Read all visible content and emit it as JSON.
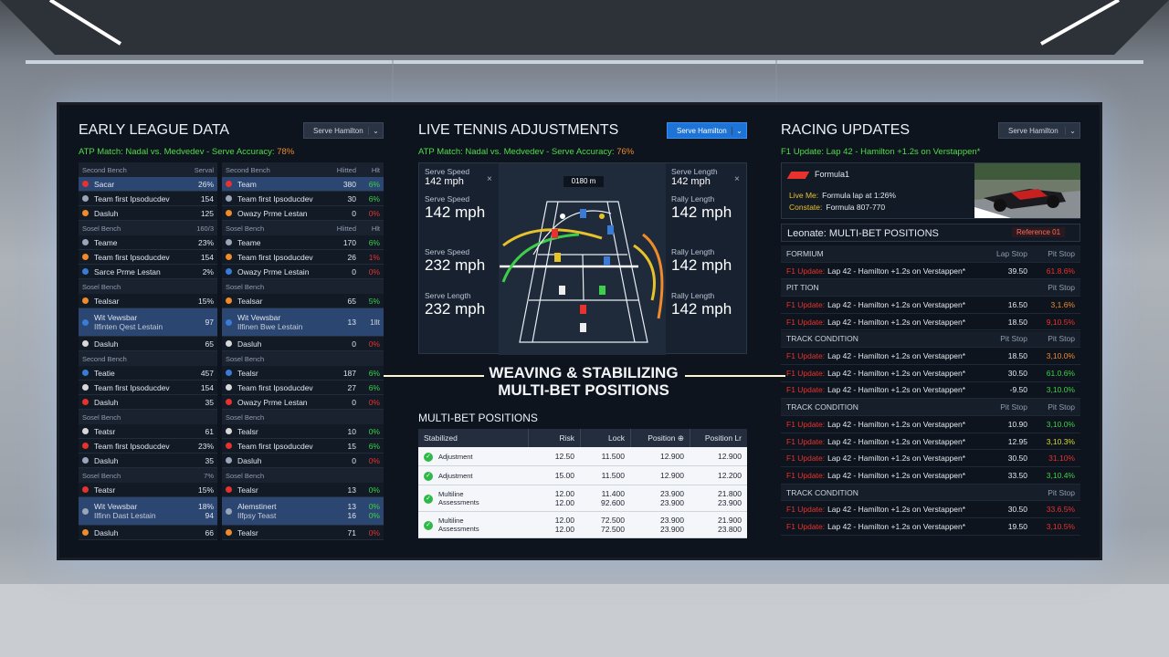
{
  "left": {
    "title": "EARLY LEAGUE DATA",
    "dropdown": "Serve Hamilton",
    "subtitle": "ATP Match: Nadal vs. Medvedev - Serve Accuracy: ",
    "subtitle_value": "78%",
    "columns": [
      {
        "groups": [
          {
            "name": "Second Bench",
            "v": "Serval",
            "rows": [
              {
                "name": "Sacar",
                "v": "26%",
                "hl": true
              },
              {
                "name": "Team first Ipsoducdev",
                "v": "154"
              },
              {
                "name": "Dasluh",
                "v": "125"
              }
            ]
          },
          {
            "name": "Sosel Bench",
            "v": "160/3",
            "rows": [
              {
                "name": "Teame",
                "v": "23%"
              },
              {
                "name": "Team first Ipsoducdev",
                "v": "154"
              },
              {
                "name": "Sarce Prme Lestan",
                "v": "2%"
              }
            ]
          },
          {
            "name": "Sosel Bench",
            "rows": [
              {
                "name": "Tealsar",
                "v": "15%"
              },
              {
                "name": "Wit Vewsbar",
                "name2": "Ilfinten Qest Lestain",
                "v": "97",
                "hl": true
              },
              {
                "name": "Dasluh",
                "v": "65"
              }
            ]
          },
          {
            "name": "Second Bench",
            "rows": [
              {
                "name": "Teatie",
                "v": "457"
              },
              {
                "name": "Team first Ipsoducdev",
                "v": "154"
              },
              {
                "name": "Dasluh",
                "v": "35"
              }
            ]
          },
          {
            "name": "Sosel Bench",
            "rows": [
              {
                "name": "Teatsr",
                "v": "61"
              },
              {
                "name": "Team first Ipsoducdev",
                "v": "23%"
              },
              {
                "name": "Dasluh",
                "v": "35"
              }
            ]
          },
          {
            "name": "Sosel Bench",
            "v": "7%",
            "rows": [
              {
                "name": "Teatsr",
                "v": "15%"
              },
              {
                "name": "Wit Vewsbar",
                "name2": "Ilfinn Dast Lestain",
                "v": "18%",
                "v2": "94",
                "hl": true
              },
              {
                "name": "Dasluh",
                "v": "66"
              }
            ]
          }
        ]
      },
      {
        "groups": [
          {
            "name": "Second Bench",
            "v": "Hlitted",
            "p": "Hlt",
            "rows": [
              {
                "name": "Team",
                "v": "380",
                "p": "6%",
                "pc": "#3ecf4a",
                "hl": true
              },
              {
                "name": "Team first Ipsoducdev",
                "v": "30",
                "p": "6%",
                "pc": "#3ecf4a"
              },
              {
                "name": "Owazy Prme Lestan",
                "v": "0",
                "p": "0%",
                "pc": "#e8322e"
              }
            ]
          },
          {
            "name": "Sosel Bench",
            "v": "Hlitted",
            "p": "Hlt",
            "rows": [
              {
                "name": "Teame",
                "v": "170",
                "p": "6%",
                "pc": "#3ecf4a"
              },
              {
                "name": "Team first Ipsoducdev",
                "v": "26",
                "p": "1%",
                "pc": "#e8322e"
              },
              {
                "name": "Owazy Prme Lestain",
                "v": "0",
                "p": "0%",
                "pc": "#e8322e"
              }
            ]
          },
          {
            "name": "Sosel Bench",
            "rows": [
              {
                "name": "Tealsar",
                "v": "65",
                "p": "5%",
                "pc": "#3ecf4a"
              },
              {
                "name": "Wit Vewsbar",
                "name2": "Ilfinen Bwe Lestain",
                "v": "13",
                "p": "1llt",
                "pc": "#c9d2df",
                "hl": true
              },
              {
                "name": "Dasluh",
                "v": "0",
                "p": "0%",
                "pc": "#e8322e"
              }
            ]
          },
          {
            "name": "Sosel Bench",
            "rows": [
              {
                "name": "Tealsr",
                "v": "187",
                "p": "6%",
                "pc": "#3ecf4a"
              },
              {
                "name": "Team first Ipsoducdev",
                "v": "27",
                "p": "6%",
                "pc": "#3ecf4a"
              },
              {
                "name": "Owazy Prme Lestan",
                "v": "0",
                "p": "0%",
                "pc": "#e8322e"
              }
            ]
          },
          {
            "name": "Sosel Bench",
            "rows": [
              {
                "name": "Tealsr",
                "v": "10",
                "p": "0%",
                "pc": "#3ecf4a"
              },
              {
                "name": "Team first Ipsoducdev",
                "v": "15",
                "p": "6%",
                "pc": "#3ecf4a"
              },
              {
                "name": "Dasluh",
                "v": "0",
                "p": "0%",
                "pc": "#e8322e"
              }
            ]
          },
          {
            "name": "Sosel Bench",
            "rows": [
              {
                "name": "Tealsr",
                "v": "13",
                "p": "0%",
                "pc": "#3ecf4a"
              },
              {
                "name": "Alemstinert",
                "name2": "Ilfpsy Teast",
                "v": "13",
                "p": "0%",
                "v2": "16",
                "p2": "0%",
                "pc": "#3ecf4a",
                "hl": true
              },
              {
                "name": "Tealsr",
                "v": "71",
                "p": "0%",
                "pc": "#e8322e"
              }
            ]
          }
        ]
      }
    ]
  },
  "middle": {
    "title": "LIVE TENNIS ADJUSTMENTS",
    "dropdown": "Serve Hamilton",
    "subtitle": "ATP Match: Nadal vs. Medvedev - Serve Accuracy: ",
    "subtitle_value": "76%",
    "court_label": "0180 m",
    "stats_left": [
      {
        "label": "Serve Speed",
        "value": "142 mph",
        "small": true
      },
      {
        "label": "Serve Speed",
        "value": "142 mph"
      },
      {
        "label": "Serve Speed",
        "value": "232 mph"
      },
      {
        "label": "Serve Length",
        "value": "232 mph"
      }
    ],
    "stats_right": [
      {
        "label": "Serve Length",
        "value": "142 mph",
        "small": true
      },
      {
        "label": "Rally Length",
        "value": "142 mph"
      },
      {
        "label": "Rally Length",
        "value": "142 mph"
      },
      {
        "label": "Rally Length",
        "value": "142 mph"
      }
    ],
    "banner": [
      "WEAVING & STABILIZING",
      "MULTI-BET POSITIONS"
    ],
    "table": {
      "title": "MULTI-BET POSITIONS",
      "columns": [
        "Stabilized",
        "Risk",
        "Lock",
        "Position ⊕",
        "Position Lr"
      ],
      "rows": [
        [
          [
            "Adjustment"
          ],
          [
            "12.50"
          ],
          [
            "11.500"
          ],
          [
            "12.900"
          ],
          [
            "12.900"
          ]
        ],
        [
          [
            "Adjustment"
          ],
          [
            "15.00"
          ],
          [
            "11.500"
          ],
          [
            "12.900"
          ],
          [
            "12.200"
          ]
        ],
        [
          [
            "Multiline",
            "Assessments"
          ],
          [
            "12.00",
            "12.00"
          ],
          [
            "11.400",
            "92.600"
          ],
          [
            "23.900",
            "23.900"
          ],
          [
            "21.800",
            "23.900"
          ]
        ],
        [
          [
            "Multiline",
            "Assessments"
          ],
          [
            "12.00",
            "12.00"
          ],
          [
            "72.500",
            "72.500"
          ],
          [
            "23.900",
            "23.900"
          ],
          [
            "21.900",
            "23.800"
          ]
        ]
      ]
    }
  },
  "right": {
    "title": "RACING UPDATES",
    "dropdown": "Serve Hamilton",
    "subtitle": "F1 Update: Lap 42 - Hamilton +1.2s on Verstappen*",
    "card": {
      "brand": "Formula1",
      "line1_label": "Live Me:",
      "line1": "Formula lap at 1:26%",
      "line2_label": "Constate:",
      "line2": "Formula 807-770"
    },
    "section": "Leonate: MULTI-BET POSITIONS",
    "badge": "Reference 01",
    "groups": [
      {
        "name": "FORMIUM",
        "cols": [
          "Lap Stop",
          "Pit Stop"
        ],
        "rows": [
          {
            "tag": "F1 Update:",
            "text": "Lap 42 - Hamilton +1.2s on Verstappen*",
            "v": "39.50",
            "p": "61.8.6%",
            "pc": "#e8322e"
          }
        ]
      },
      {
        "name": "PIT TION",
        "cols": [
          "Pit Stop"
        ],
        "rows": [
          {
            "tag": "F1 Update:",
            "text": "Lap 42 - Hamilton +1.2s on Verstappen*",
            "v": "16.50",
            "p": "3,1.6%",
            "pc": "#f08a2a"
          },
          {
            "tag": "F1 Update:",
            "text": "Lap 42 - Hamilton +1.2s on Verstappen*",
            "v": "18.50",
            "p": "9,10.5%",
            "pc": "#e8322e"
          }
        ]
      },
      {
        "name": "TRACK CONDITION",
        "cols": [
          "Pit Stop",
          "Pit Stop"
        ],
        "rows": [
          {
            "tag": "F1 Update:",
            "text": "Lap 42 - Hamilton +1.2s on Verstappen*",
            "v": "18.50",
            "p": "3,10.0%",
            "pc": "#f08a2a"
          },
          {
            "tag": "F1 Update:",
            "text": "Lap 42 - Hamilton +1.2s on Verstappen*",
            "v": "30.50",
            "p": "61.0.6%",
            "pc": "#3ecf4a"
          },
          {
            "tag": "F1 Update:",
            "text": "Lap 42 - Hamilton +1.2s on Verstappen*",
            "v": "-9.50",
            "p": "3,10.0%",
            "pc": "#3ecf4a"
          }
        ]
      },
      {
        "name": "TRACK CONDITION",
        "cols": [
          "Pit Stop",
          "Pit Stop"
        ],
        "rows": [
          {
            "tag": "F1 Update:",
            "text": "Lap 42 - Hamilton +1.2s on Verstappen*",
            "v": "10.90",
            "p": "3,10.0%",
            "pc": "#3ecf4a"
          },
          {
            "tag": "F1 Update:",
            "text": "Lap 42 - Hamilton +1.2s on Verstappen*",
            "v": "12.95",
            "p": "3,10.3%",
            "pc": "#d8d82a"
          },
          {
            "tag": "F1 Update:",
            "text": "Lap 42 - Hamilton +1.2s on Verstappen*",
            "v": "30.50",
            "p": "31.10%",
            "pc": "#e8322e"
          },
          {
            "tag": "F1 Update:",
            "text": "Lap 42 - Hamilton +1.2s on Verstappen*",
            "v": "33.50",
            "p": "3,10.4%",
            "pc": "#3ecf4a"
          }
        ]
      },
      {
        "name": "TRACK CONDITION",
        "cols": [
          "Pit Stop"
        ],
        "rows": [
          {
            "tag": "F1 Update:",
            "text": "Lap 42 - Hamilton +1.2s on Verstappen*",
            "v": "30.50",
            "p": "33.6.5%",
            "pc": "#e8322e"
          },
          {
            "tag": "F1 Update:",
            "text": "Lap 42 - Hamilton +1.2s on Verstappen*",
            "v": "19.50",
            "p": "3,10.5%",
            "pc": "#e8322e"
          }
        ]
      }
    ]
  }
}
